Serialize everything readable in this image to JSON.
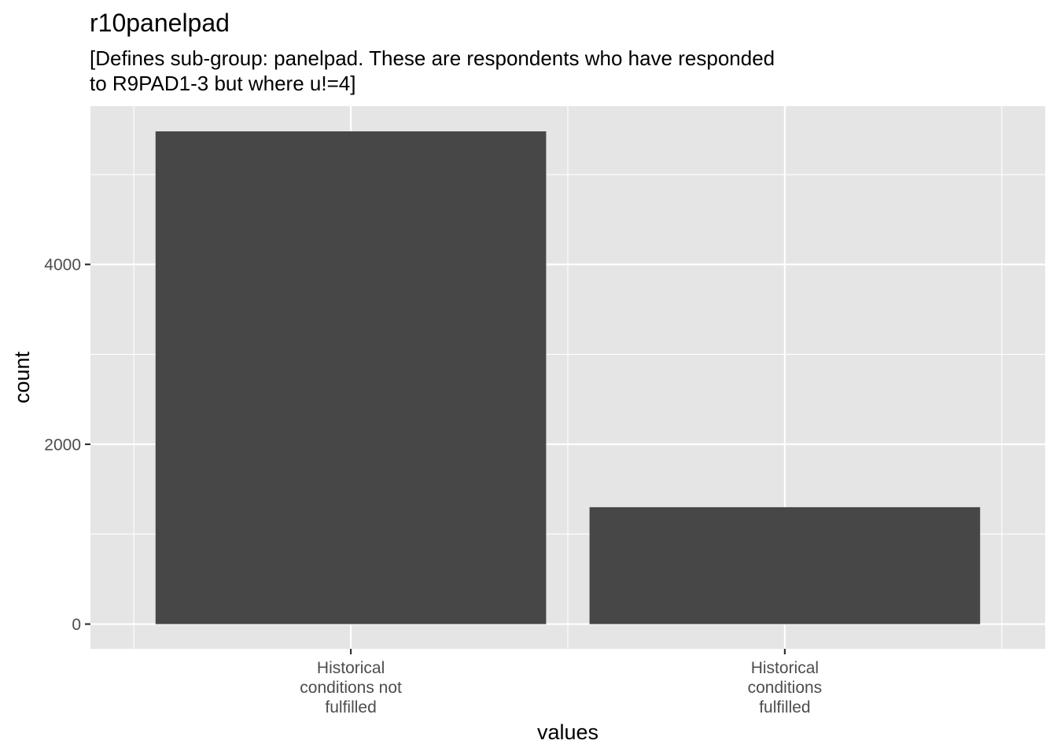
{
  "chart_data": {
    "type": "bar",
    "title": "r10panelpad",
    "subtitle_lines": [
      "[Defines sub-group: panelpad. These are respondents who have responded",
      "to R9PAD1-3 but where u!=4]"
    ],
    "xlabel": "values",
    "ylabel": "count",
    "categories": [
      [
        "Historical",
        "conditions not",
        "fulfilled"
      ],
      [
        "Historical",
        "conditions",
        "fulfilled"
      ]
    ],
    "values": [
      5480,
      1300
    ],
    "ylim": [
      -275,
      5760
    ],
    "yticks": [
      0,
      2000,
      4000
    ],
    "yticks_minor": [
      1000,
      3000,
      5000
    ],
    "grid": true,
    "colors": {
      "bar": "#474747",
      "panel": "#e5e5e5",
      "grid": "#ffffff",
      "tick": "#333333"
    }
  }
}
